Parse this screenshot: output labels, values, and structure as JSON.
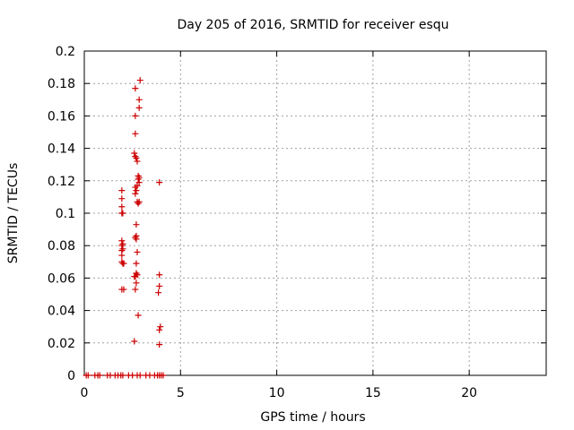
{
  "chart_data": {
    "type": "scatter",
    "title": "Day 205 of 2016, SRMTID for receiver esqu",
    "xlabel": "GPS time / hours",
    "ylabel": "SRMTID / TECUs",
    "xlim": [
      0,
      24
    ],
    "ylim": [
      0,
      0.2
    ],
    "x_ticks": [
      0,
      5,
      10,
      15,
      20
    ],
    "x_tick_labels": [
      "0",
      "5",
      "10",
      "15",
      "20"
    ],
    "y_ticks": [
      0,
      0.02,
      0.04,
      0.06,
      0.08,
      0.1,
      0.12,
      0.14,
      0.16,
      0.18,
      0.2
    ],
    "y_tick_labels": [
      "0",
      "0.02",
      "0.04",
      "0.06",
      "0.08",
      "0.1",
      "0.12",
      "0.14",
      "0.16",
      "0.18",
      "0.2"
    ],
    "grid": true,
    "marker": "plus",
    "color": "#cc0000",
    "points": [
      [
        0.1,
        0
      ],
      [
        0.2,
        0
      ],
      [
        0.55,
        0
      ],
      [
        0.7,
        0
      ],
      [
        0.8,
        0
      ],
      [
        1.2,
        0
      ],
      [
        1.35,
        0
      ],
      [
        1.6,
        0
      ],
      [
        1.75,
        0
      ],
      [
        1.9,
        0
      ],
      [
        2.0,
        0
      ],
      [
        2.3,
        0
      ],
      [
        2.5,
        0
      ],
      [
        2.75,
        0
      ],
      [
        2.9,
        0
      ],
      [
        3.2,
        0
      ],
      [
        3.4,
        0
      ],
      [
        3.65,
        0
      ],
      [
        3.8,
        0
      ],
      [
        3.9,
        0
      ],
      [
        4.0,
        0
      ],
      [
        4.1,
        0
      ],
      [
        1.95,
        0.114
      ],
      [
        1.95,
        0.109
      ],
      [
        1.95,
        0.104
      ],
      [
        1.95,
        0.1
      ],
      [
        2.0,
        0.1
      ],
      [
        1.95,
        0.083
      ],
      [
        1.95,
        0.08
      ],
      [
        2.0,
        0.081
      ],
      [
        1.95,
        0.077
      ],
      [
        2.0,
        0.078
      ],
      [
        1.95,
        0.074
      ],
      [
        1.95,
        0.07
      ],
      [
        2.0,
        0.069
      ],
      [
        2.05,
        0.069
      ],
      [
        1.95,
        0.053
      ],
      [
        2.05,
        0.053
      ],
      [
        2.65,
        0.177
      ],
      [
        2.65,
        0.16
      ],
      [
        2.65,
        0.149
      ],
      [
        2.6,
        0.137
      ],
      [
        2.65,
        0.135
      ],
      [
        2.7,
        0.134
      ],
      [
        2.75,
        0.132
      ],
      [
        2.65,
        0.116
      ],
      [
        2.7,
        0.114
      ],
      [
        2.65,
        0.112
      ],
      [
        2.75,
        0.117
      ],
      [
        2.8,
        0.121
      ],
      [
        2.8,
        0.123
      ],
      [
        2.75,
        0.107
      ],
      [
        2.8,
        0.106
      ],
      [
        2.7,
        0.093
      ],
      [
        2.7,
        0.086
      ],
      [
        2.65,
        0.085
      ],
      [
        2.7,
        0.084
      ],
      [
        2.75,
        0.076
      ],
      [
        2.7,
        0.069
      ],
      [
        2.7,
        0.063
      ],
      [
        2.65,
        0.061
      ],
      [
        2.6,
        0.061
      ],
      [
        2.75,
        0.062
      ],
      [
        2.7,
        0.057
      ],
      [
        2.65,
        0.053
      ],
      [
        2.8,
        0.037
      ],
      [
        2.6,
        0.021
      ],
      [
        2.9,
        0.182
      ],
      [
        2.85,
        0.17
      ],
      [
        2.85,
        0.165
      ],
      [
        2.85,
        0.122
      ],
      [
        2.85,
        0.119
      ],
      [
        2.85,
        0.107
      ],
      [
        3.9,
        0.119
      ],
      [
        3.9,
        0.062
      ],
      [
        3.9,
        0.055
      ],
      [
        3.85,
        0.051
      ],
      [
        3.95,
        0.03
      ],
      [
        3.9,
        0.028
      ],
      [
        3.9,
        0.019
      ]
    ]
  }
}
